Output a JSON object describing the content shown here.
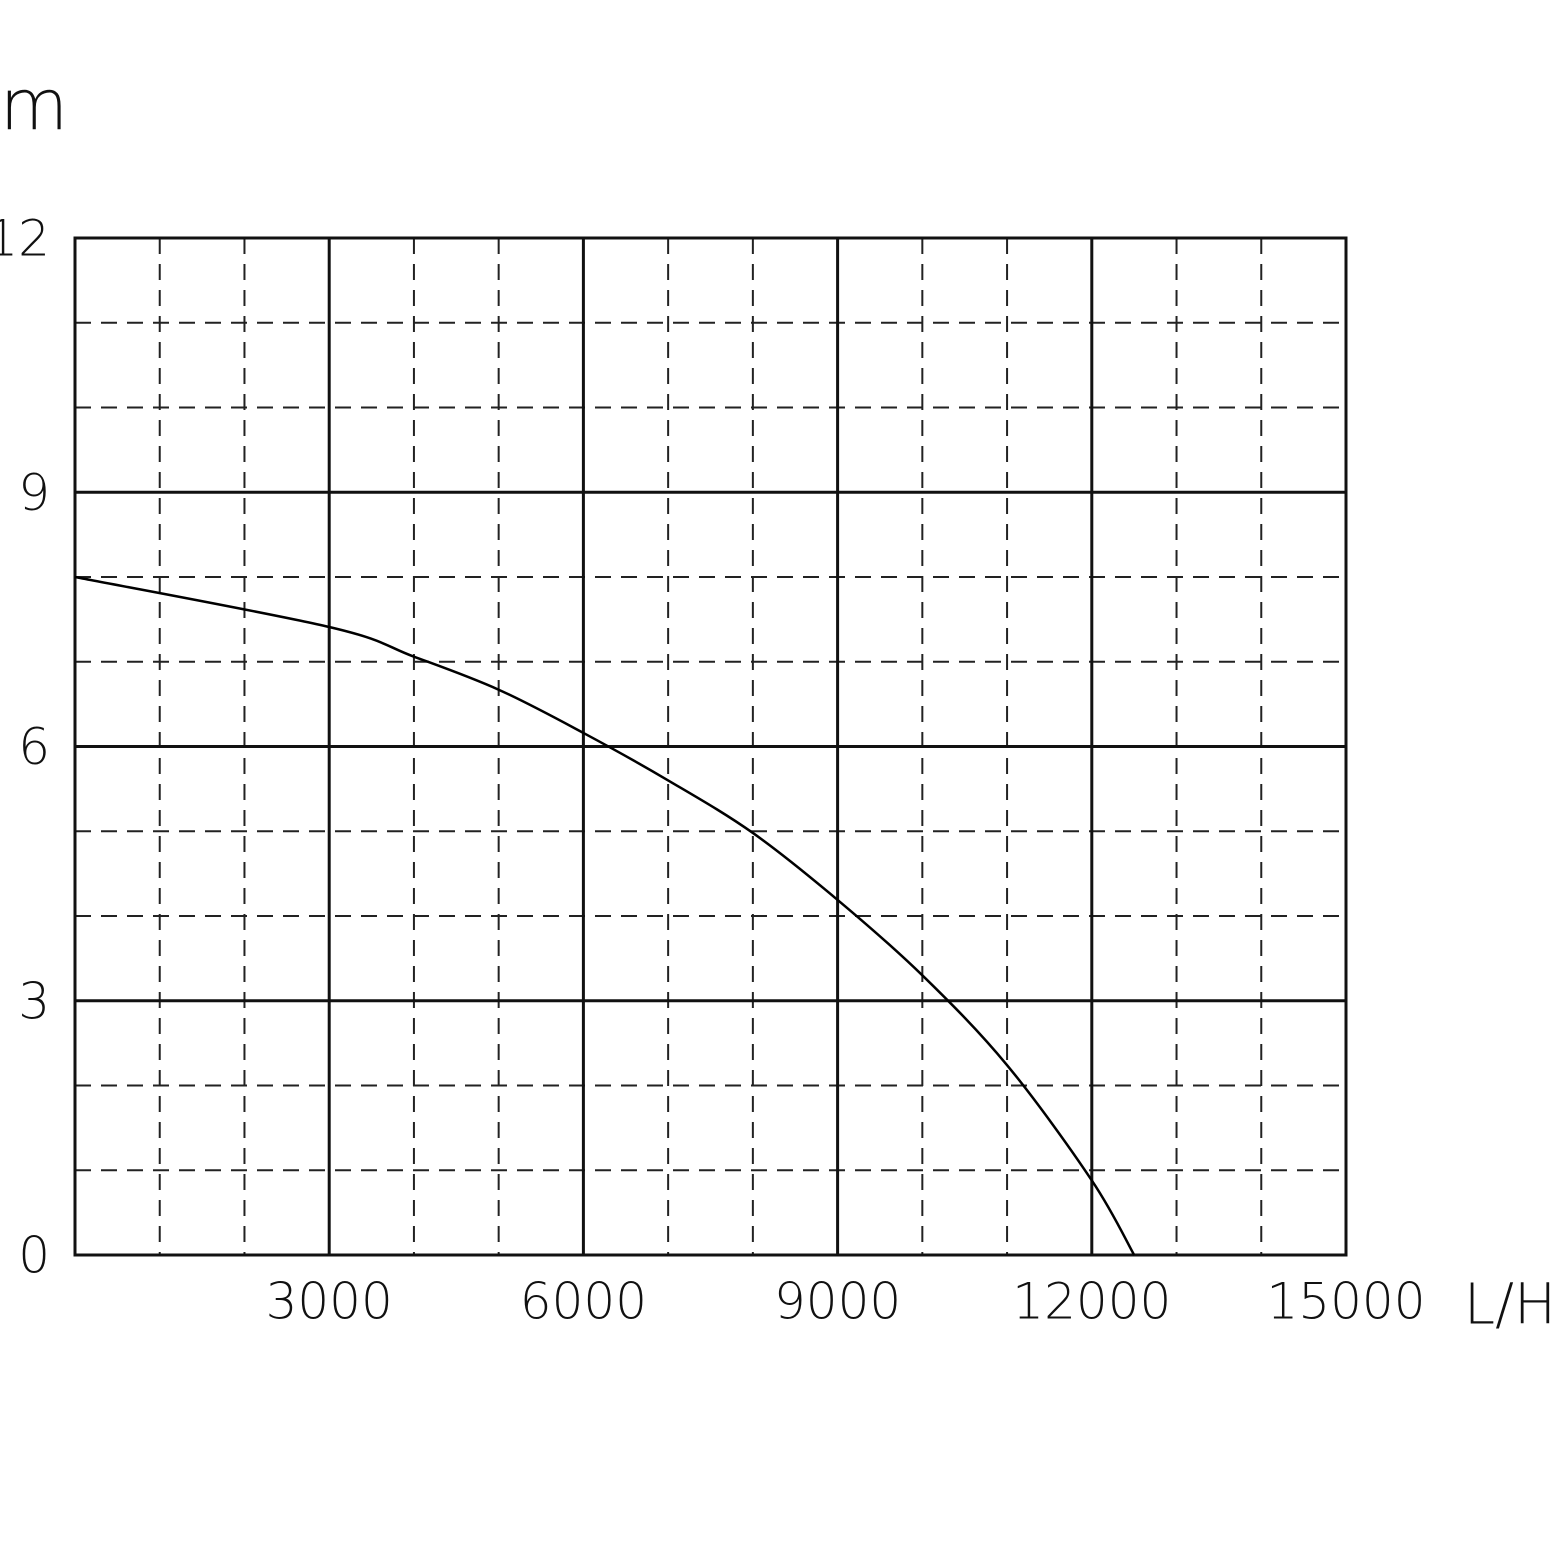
{
  "chart_data": {
    "type": "line",
    "x_label": "L/H",
    "y_label": "m",
    "x": [
      0,
      3000,
      4000,
      5000,
      6000,
      7000,
      8000,
      9000,
      10000,
      11000,
      12000,
      12500
    ],
    "series": [
      {
        "color": "#000000",
        "values": [
          8.0,
          7.41,
          7.06,
          6.67,
          6.16,
          5.6,
          4.98,
          4.19,
          3.3,
          2.24,
          0.88,
          0
        ]
      }
    ],
    "xlim": [
      0,
      15000
    ],
    "ylim": [
      0,
      12
    ],
    "xticks": [
      3000,
      6000,
      9000,
      12000,
      15000
    ],
    "yticks": [
      0,
      3,
      6,
      9,
      12
    ],
    "minor_xticks": [
      1000,
      2000,
      4000,
      5000,
      7000,
      8000,
      10000,
      11000,
      13000,
      14000
    ],
    "minor_yticks": [
      1,
      2,
      4,
      5,
      7,
      8,
      10,
      11
    ],
    "grid": true
  }
}
